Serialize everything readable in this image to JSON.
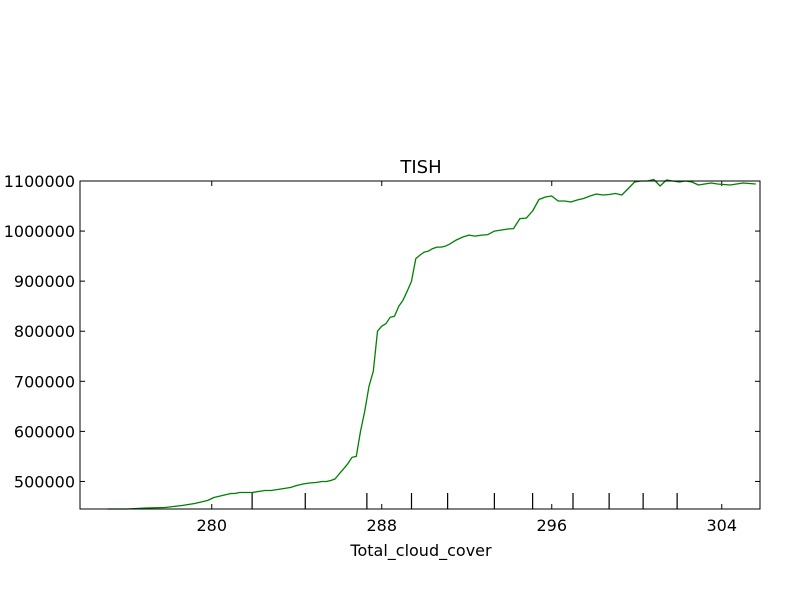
{
  "chart_data": {
    "type": "line",
    "title": "TISH",
    "xlabel": "Total_cloud_cover",
    "ylabel": "",
    "xlim": [
      273.8,
      305.8
    ],
    "ylim": [
      445000,
      1100000
    ],
    "xticks": [
      280,
      288,
      296,
      304
    ],
    "yticks": [
      500000,
      600000,
      700000,
      800000,
      900000,
      1000000,
      1100000
    ],
    "event_marks_x": [
      281.9,
      284.4,
      287.3,
      289.4,
      291.1,
      293.3,
      295.1,
      297.0,
      298.7,
      300.3,
      301.9
    ],
    "line_color": "#008000",
    "series": [
      {
        "x": [
          275.1,
          276.0,
          276.9,
          277.8,
          278.6,
          279.2,
          279.8,
          280.1,
          280.3,
          280.5,
          280.7,
          280.9,
          281.1,
          281.3,
          281.6,
          281.9,
          282.2,
          282.5,
          282.8,
          283.1,
          283.4,
          283.7,
          284.0,
          284.3,
          284.6,
          284.9,
          285.2,
          285.4,
          285.6,
          285.8,
          286.0,
          286.2,
          286.4,
          286.6,
          286.8,
          287.0,
          287.2,
          287.4,
          287.6,
          287.8,
          288.0,
          288.2,
          288.4,
          288.6,
          288.8,
          289.0,
          289.2,
          289.4,
          289.6,
          289.8,
          290.0,
          290.2,
          290.4,
          290.6,
          290.8,
          291.0,
          291.2,
          291.5,
          291.8,
          292.1,
          292.4,
          292.7,
          293.0,
          293.3,
          293.6,
          293.9,
          294.2,
          294.5,
          294.8,
          295.1,
          295.4,
          295.7,
          296.0,
          296.3,
          296.6,
          296.9,
          297.2,
          297.5,
          297.8,
          298.1,
          298.4,
          298.7,
          299.0,
          299.3,
          299.6,
          299.9,
          300.2,
          300.5,
          300.8,
          301.1,
          301.4,
          301.7,
          302.0,
          302.3,
          302.6,
          302.9,
          303.2,
          303.5,
          303.8,
          304.1,
          304.4,
          304.7,
          305.0,
          305.3,
          305.6
        ],
        "values": [
          445000,
          445000,
          447000,
          448000,
          452000,
          456000,
          462000,
          468000,
          470000,
          472000,
          474000,
          476000,
          476000,
          478000,
          478000,
          478000,
          480000,
          482000,
          482000,
          484000,
          486000,
          488000,
          492000,
          495000,
          497000,
          498000,
          500000,
          500000,
          502000,
          505000,
          515000,
          525000,
          535000,
          548000,
          550000,
          600000,
          640000,
          690000,
          720000,
          800000,
          810000,
          815000,
          828000,
          830000,
          850000,
          862000,
          880000,
          900000,
          945000,
          952000,
          958000,
          960000,
          965000,
          968000,
          968000,
          970000,
          974000,
          982000,
          988000,
          992000,
          990000,
          992000,
          993000,
          1000000,
          1002000,
          1004000,
          1005000,
          1025000,
          1026000,
          1040000,
          1063000,
          1068000,
          1070000,
          1060000,
          1060000,
          1058000,
          1062000,
          1065000,
          1070000,
          1074000,
          1072000,
          1073000,
          1075000,
          1072000,
          1085000,
          1098000,
          1100000,
          1100000,
          1103000,
          1090000,
          1102000,
          1100000,
          1098000,
          1100000,
          1098000,
          1092000,
          1094000,
          1096000,
          1094000,
          1093000,
          1092000,
          1094000,
          1096000,
          1095000,
          1094000
        ]
      }
    ]
  }
}
